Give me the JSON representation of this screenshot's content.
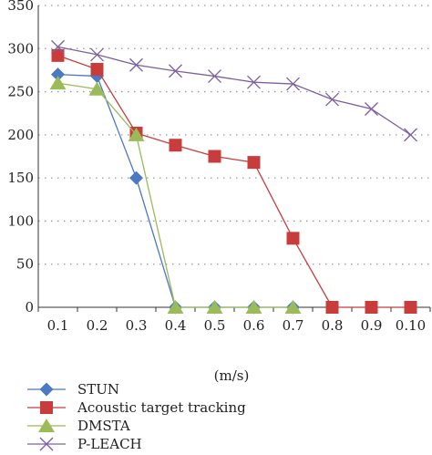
{
  "chart_data": {
    "type": "line",
    "title": "",
    "xlabel": "(m/s)",
    "ylabel": "",
    "categories": [
      "0.1",
      "0.2",
      "0.3",
      "0.4",
      "0.5",
      "0.6",
      "0.7",
      "0.8",
      "0.9",
      "0.10"
    ],
    "ylim": [
      0,
      350
    ],
    "yticks": [
      0,
      50,
      100,
      150,
      200,
      250,
      300,
      350
    ],
    "grid": true,
    "legend_position": "bottom",
    "series": [
      {
        "name": "STUN",
        "color": "#4a78c2",
        "marker": "diamond",
        "values": [
          270,
          268,
          150,
          0,
          0,
          0,
          0,
          null,
          null,
          null
        ]
      },
      {
        "name": "Acoustic target tracking",
        "color": "#c83c3c",
        "marker": "square",
        "values": [
          292,
          276,
          202,
          188,
          175,
          168,
          80,
          0,
          0,
          0
        ]
      },
      {
        "name": "DMSTA",
        "color": "#9bbb59",
        "marker": "triangle",
        "values": [
          260,
          253,
          200,
          0,
          0,
          0,
          0,
          null,
          null,
          null
        ]
      },
      {
        "name": "P-LEACH",
        "color": "#7d60a0",
        "marker": "cross",
        "values": [
          302,
          293,
          281,
          274,
          268,
          261,
          259,
          241,
          230,
          200
        ]
      }
    ]
  }
}
